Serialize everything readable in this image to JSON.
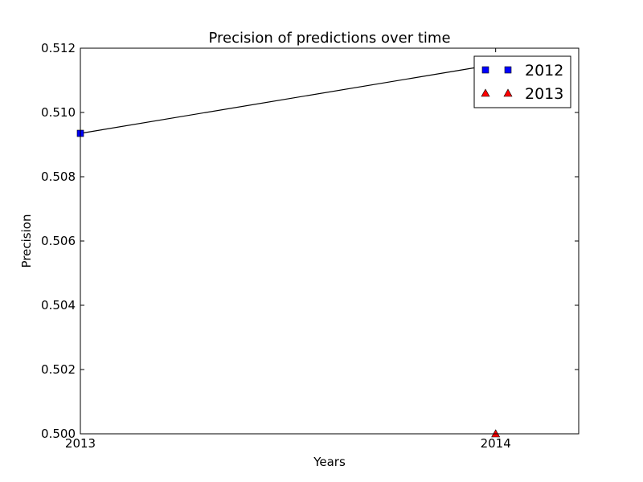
{
  "chart_data": {
    "type": "line",
    "title": "Precision of predictions over time",
    "xlabel": "Years",
    "ylabel": "Precision",
    "xlim": [
      2013,
      2014.2
    ],
    "ylim": [
      0.5,
      0.512
    ],
    "x_ticks": [
      "2013",
      "2014"
    ],
    "x_tick_values": [
      2013,
      2014
    ],
    "y_ticks": [
      "0.500",
      "0.502",
      "0.504",
      "0.506",
      "0.508",
      "0.510",
      "0.512"
    ],
    "y_tick_values": [
      0.5,
      0.502,
      0.504,
      0.506,
      0.508,
      0.51,
      0.512
    ],
    "grid": false,
    "legend_position": "top-right",
    "line": {
      "x": [
        2013,
        2014
      ],
      "y": [
        0.50935,
        0.5115
      ],
      "color": "#000000"
    },
    "series": [
      {
        "name": "2012",
        "marker": "square",
        "color": "#0000ff",
        "x": [
          2013
        ],
        "y": [
          0.50935
        ]
      },
      {
        "name": "2013",
        "marker": "triangle",
        "color": "#ff0000",
        "x": [
          2014
        ],
        "y": [
          0.5
        ]
      }
    ]
  }
}
